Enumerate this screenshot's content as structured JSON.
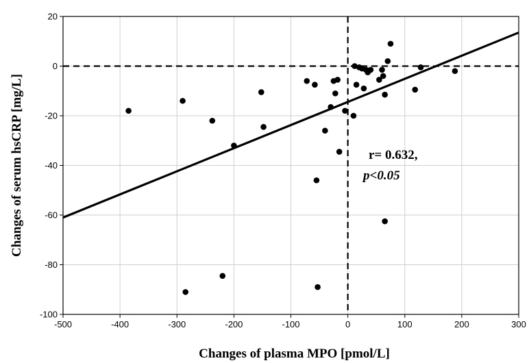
{
  "chart_data": {
    "type": "scatter",
    "title": "",
    "xlabel": "Changes of plasma MPO [pmol/L]",
    "ylabel": "Changes of serum hsCRP [mg/L]",
    "xlim": [
      -500,
      300
    ],
    "ylim": [
      -100,
      20
    ],
    "x_ticks": [
      -500,
      -400,
      -300,
      -200,
      -100,
      0,
      100,
      200,
      300
    ],
    "y_ticks": [
      -100,
      -80,
      -60,
      -40,
      -20,
      0,
      20
    ],
    "x_tick_labels": [
      "-500",
      "-400",
      "-300",
      "-200",
      "-100",
      "0",
      "100",
      "200",
      "300"
    ],
    "y_tick_labels": [
      "-100",
      "-80",
      "-60",
      "-40",
      "-20",
      "0",
      "20"
    ],
    "grid": true,
    "reference_lines": {
      "x": 0,
      "y": 0,
      "style": "dashed"
    },
    "regression_line": {
      "points": [
        [
          -500,
          -61
        ],
        [
          300,
          13.5
        ]
      ]
    },
    "annotation": {
      "r_text": "r= 0.632,",
      "p_text": "p<0.05"
    },
    "points": [
      [
        -385,
        -18
      ],
      [
        -290,
        -14
      ],
      [
        -285,
        -91
      ],
      [
        -238,
        -22
      ],
      [
        -220,
        -84.5
      ],
      [
        -200,
        -32
      ],
      [
        -152,
        -10.5
      ],
      [
        -148,
        -24.5
      ],
      [
        -72,
        -6
      ],
      [
        -58,
        -7.5
      ],
      [
        -55,
        -46
      ],
      [
        -53,
        -89
      ],
      [
        -40,
        -26
      ],
      [
        -30,
        -16.5
      ],
      [
        -25,
        -6
      ],
      [
        -22,
        -11
      ],
      [
        -18,
        -5.5
      ],
      [
        -15,
        -34.5
      ],
      [
        -5,
        -18
      ],
      [
        10,
        -20
      ],
      [
        12,
        0
      ],
      [
        15,
        -7.5
      ],
      [
        20,
        -0.5
      ],
      [
        25,
        -1
      ],
      [
        28,
        -9
      ],
      [
        32,
        -1.5
      ],
      [
        35,
        -2.5
      ],
      [
        40,
        -1.5
      ],
      [
        55,
        -5.5
      ],
      [
        60,
        -1.5
      ],
      [
        62,
        -4
      ],
      [
        65,
        -11.5
      ],
      [
        65,
        -62.5
      ],
      [
        70,
        2
      ],
      [
        75,
        9
      ],
      [
        118,
        -9.5
      ],
      [
        128,
        -0.5
      ],
      [
        188,
        -2
      ]
    ]
  }
}
